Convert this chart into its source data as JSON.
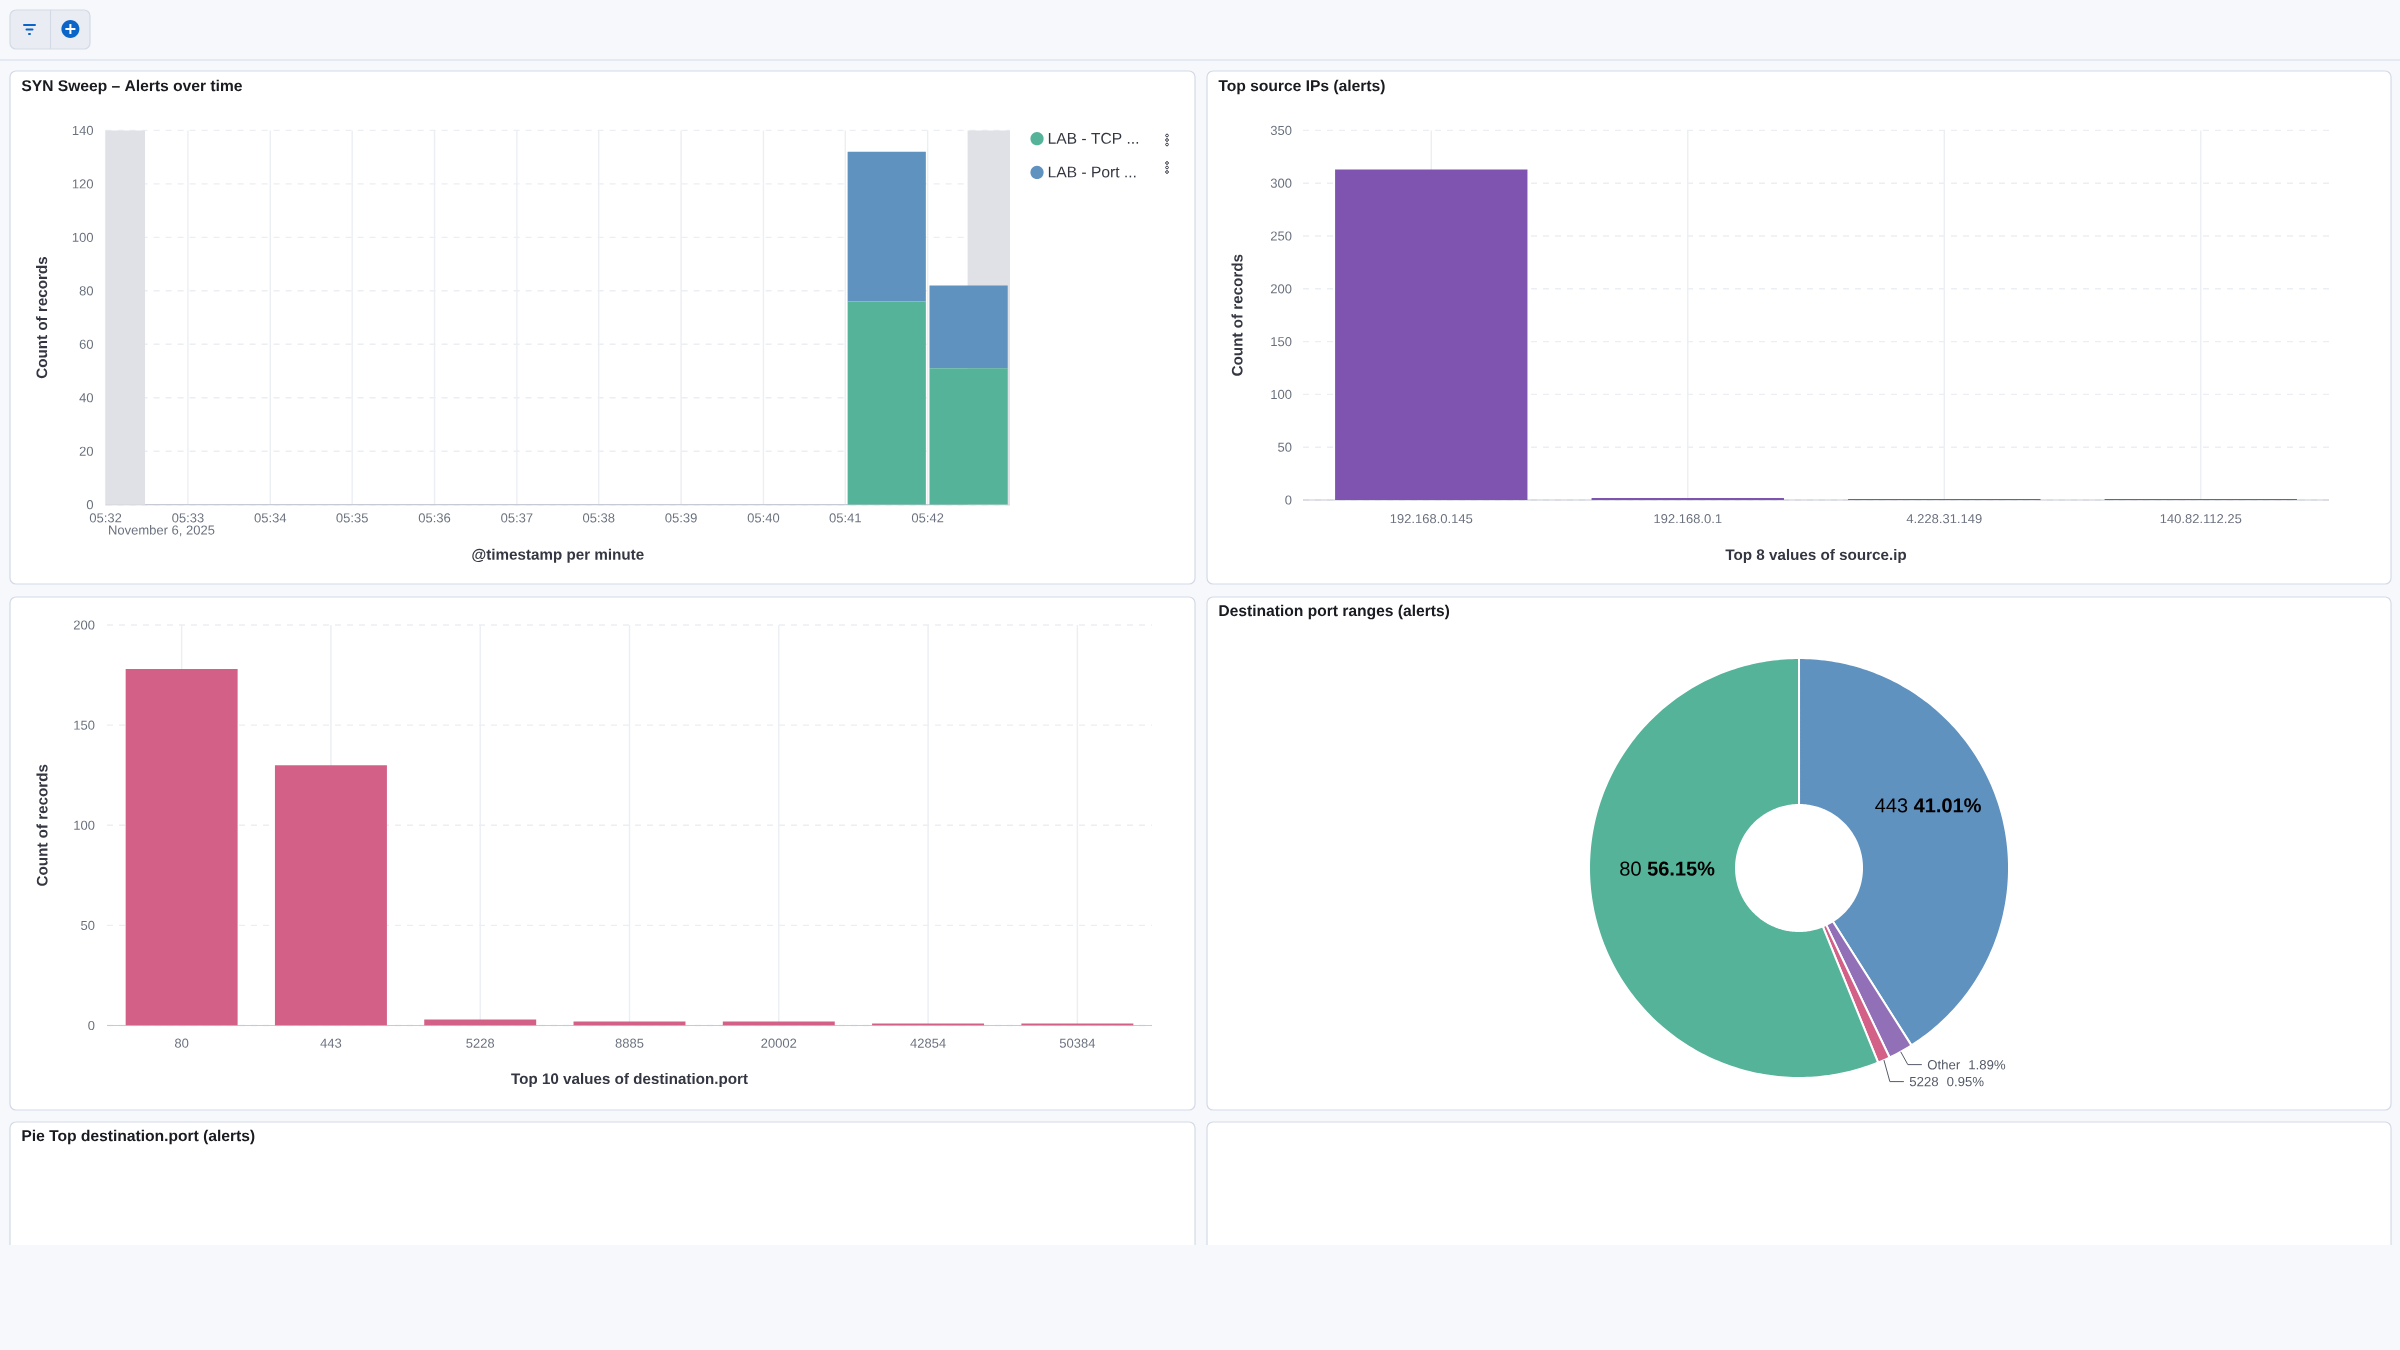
{
  "chart_data": [
    {
      "type": "bar",
      "title": "SYN Sweep – Alerts over time",
      "xlabel": "@timestamp per minute",
      "ylabel": "Count of records",
      "stacked": true,
      "x": [
        5.6917,
        5.7083
      ],
      "series": [
        {
          "name": "LAB - TCP ...",
          "color": "#54b399",
          "values": [
            76,
            51
          ]
        },
        {
          "name": "LAB - Port ...",
          "color": "#6092c0",
          "values": [
            56,
            31
          ]
        }
      ],
      "xlim": [
        5.5333,
        5.7167
      ],
      "xticks": [
        {
          "value": 5.5333,
          "label": "05:32"
        },
        {
          "value": 5.55,
          "label": "05:33"
        },
        {
          "value": 5.5667,
          "label": "05:34"
        },
        {
          "value": 5.5833,
          "label": "05:35"
        },
        {
          "value": 5.6,
          "label": "05:36"
        },
        {
          "value": 5.6167,
          "label": "05:37"
        },
        {
          "value": 5.6333,
          "label": "05:38"
        },
        {
          "value": 5.65,
          "label": "05:39"
        },
        {
          "value": 5.6667,
          "label": "05:40"
        },
        {
          "value": 5.6833,
          "label": "05:41"
        },
        {
          "value": 5.7,
          "label": "05:42"
        }
      ],
      "ylim": [
        0,
        140
      ],
      "yticks": [
        0,
        20,
        40,
        60,
        80,
        100,
        120,
        140
      ],
      "bands": [
        {
          "axis": "x",
          "from": 5.5333,
          "to": 5.5413,
          "color": "#e0e1e6"
        },
        {
          "axis": "x",
          "from": 5.7081,
          "to": 5.7167,
          "color": "#e0e1e6"
        }
      ],
      "annotations": [
        "November 6, 2025"
      ],
      "grid": true,
      "legend": "top right"
    },
    {
      "type": "bar",
      "title": "Top source IPs (alerts)",
      "xlabel": "Top 8 values of source.ip",
      "ylabel": "Count of records",
      "categories": [
        "192.168.0.145",
        "192.168.0.1",
        "4.228.31.149",
        "140.82.112.25"
      ],
      "values": [
        313,
        2,
        1,
        1
      ],
      "color": "#7f54b0",
      "ylim": [
        0,
        350
      ],
      "yticks": [
        0,
        50,
        100,
        150,
        200,
        250,
        300,
        350
      ],
      "grid": true
    },
    {
      "type": "bar",
      "xlabel": "Top 10 values of destination.port",
      "ylabel": "Count of records",
      "categories": [
        "80",
        "443",
        "5228",
        "8885",
        "20002",
        "42854",
        "50384"
      ],
      "values": [
        178,
        130,
        3,
        2,
        2,
        1,
        1
      ],
      "color": "#d36086",
      "ylim": [
        0,
        200
      ],
      "yticks": [
        0,
        50,
        100,
        150,
        200
      ],
      "grid": true
    },
    {
      "type": "donut",
      "title": "Destination port ranges (alerts)",
      "categories": [
        "443",
        "Other",
        "5228",
        "80"
      ],
      "values": [
        41.01,
        1.89,
        0.95,
        56.15
      ],
      "colors": [
        "#6092c0",
        "#9170b8",
        "#d36086",
        "#54b399"
      ],
      "value_labels": [
        "41.01%",
        "1.89%",
        "0.95%",
        "56.15%"
      ]
    },
    {
      "type": "other",
      "title": "Pie Top destination.port (alerts)"
    }
  ]
}
